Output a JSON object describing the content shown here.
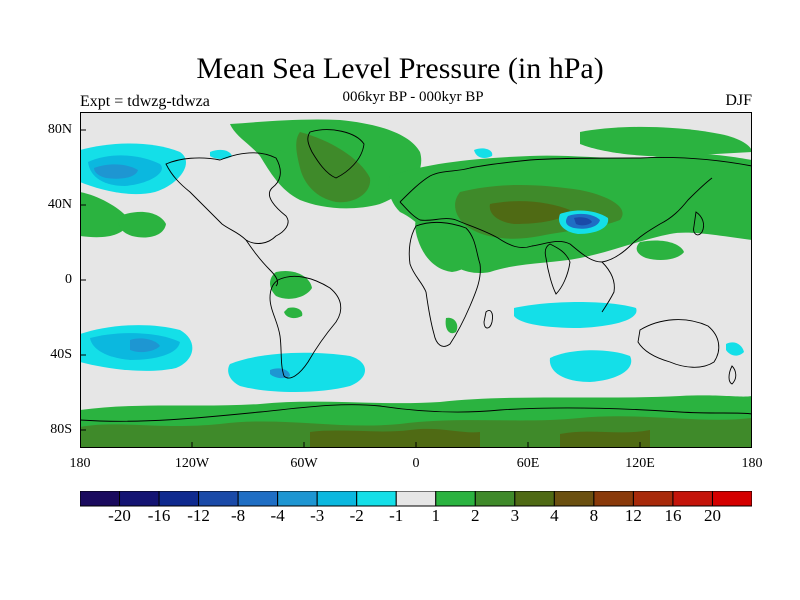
{
  "title": "Mean Sea Level Pressure (in hPa)",
  "subtitle": "006kyr BP - 000kyr BP",
  "experiment": "Expt = tdwzg-tdwza",
  "season": "DJF",
  "lat_labels": [
    "80N",
    "40N",
    "0",
    "40S",
    "80S"
  ],
  "lon_labels": [
    "180",
    "120W",
    "60W",
    "0",
    "60E",
    "120E",
    "180"
  ],
  "colorbar": {
    "colors": [
      "#1a0a5e",
      "#141473",
      "#0f2a8f",
      "#1a4aa8",
      "#1f6ec4",
      "#1e96d2",
      "#0bb8df",
      "#14dfe8",
      "#e6e6e6",
      "#2bb340",
      "#3f8a2a",
      "#4f6a14",
      "#6b5010",
      "#8a3a0a",
      "#a82a0a",
      "#c4140a",
      "#d40000"
    ],
    "labels": [
      "-20",
      "-16",
      "-12",
      "-8",
      "-4",
      "-3",
      "-2",
      "-1",
      "1",
      "2",
      "3",
      "4",
      "8",
      "12",
      "16",
      "20"
    ]
  }
}
